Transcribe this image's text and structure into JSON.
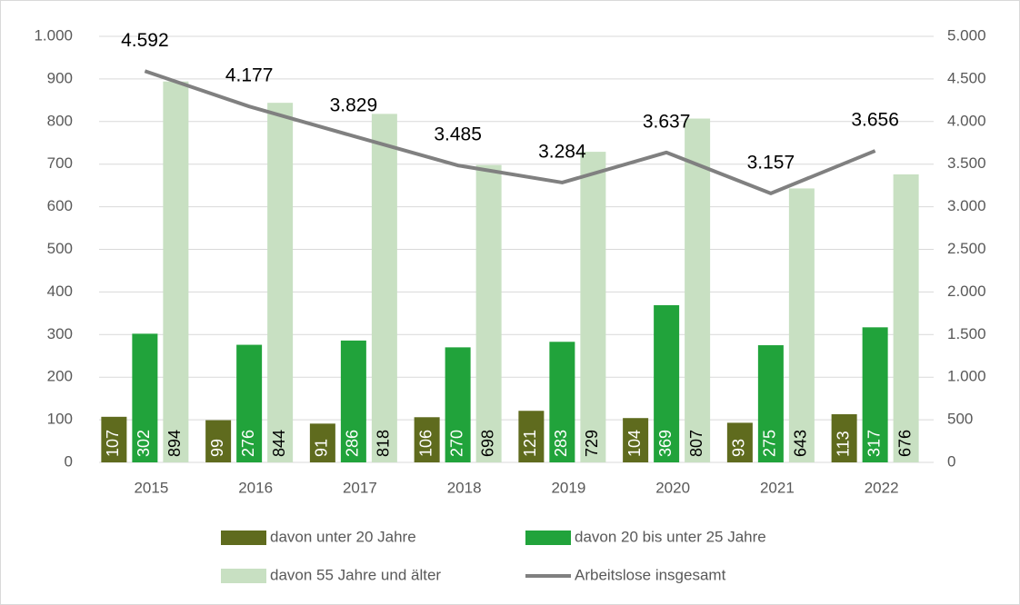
{
  "chart_data": {
    "type": "bar_line",
    "categories": [
      "2015",
      "2016",
      "2017",
      "2018",
      "2019",
      "2020",
      "2021",
      "2022"
    ],
    "series": [
      {
        "name": "davon unter 20 Jahre",
        "color": "#5f6b1e",
        "values": [
          107,
          99,
          91,
          106,
          121,
          104,
          93,
          113
        ]
      },
      {
        "name": "davon 20 bis unter 25 Jahre",
        "color": "#21a33b",
        "values": [
          302,
          276,
          286,
          270,
          283,
          369,
          275,
          317
        ]
      },
      {
        "name": "davon 55 Jahre und älter",
        "color": "#c8e0c2",
        "values": [
          894,
          844,
          818,
          698,
          729,
          807,
          643,
          676
        ]
      },
      {
        "name": "Arbeitslose insgesamt",
        "color": "#808080",
        "axis": "y2",
        "values": [
          4592,
          4177,
          3829,
          3485,
          3284,
          3637,
          3157,
          3656
        ],
        "value_labels": [
          "4.592",
          "4.177",
          "3.829",
          "3.485",
          "3.284",
          "3.637",
          "3.157",
          "3.656"
        ]
      }
    ],
    "ylim": [
      0,
      1000
    ],
    "yticks": [
      0,
      100,
      200,
      300,
      400,
      500,
      600,
      700,
      800,
      900,
      {
        "value": 1000,
        "label": "1.000"
      }
    ],
    "y2lim": [
      0,
      5000
    ],
    "y2ticks": [
      0,
      500,
      {
        "value": 1000,
        "label": "1.000"
      },
      {
        "value": 1500,
        "label": "1.500"
      },
      {
        "value": 2000,
        "label": "2.000"
      },
      {
        "value": 2500,
        "label": "2.500"
      },
      {
        "value": 3000,
        "label": "3.000"
      },
      {
        "value": 3500,
        "label": "3.500"
      },
      {
        "value": 4000,
        "label": "4.000"
      },
      {
        "value": 4500,
        "label": "4.500"
      },
      {
        "value": 5000,
        "label": "5.000"
      }
    ],
    "grid": true
  }
}
